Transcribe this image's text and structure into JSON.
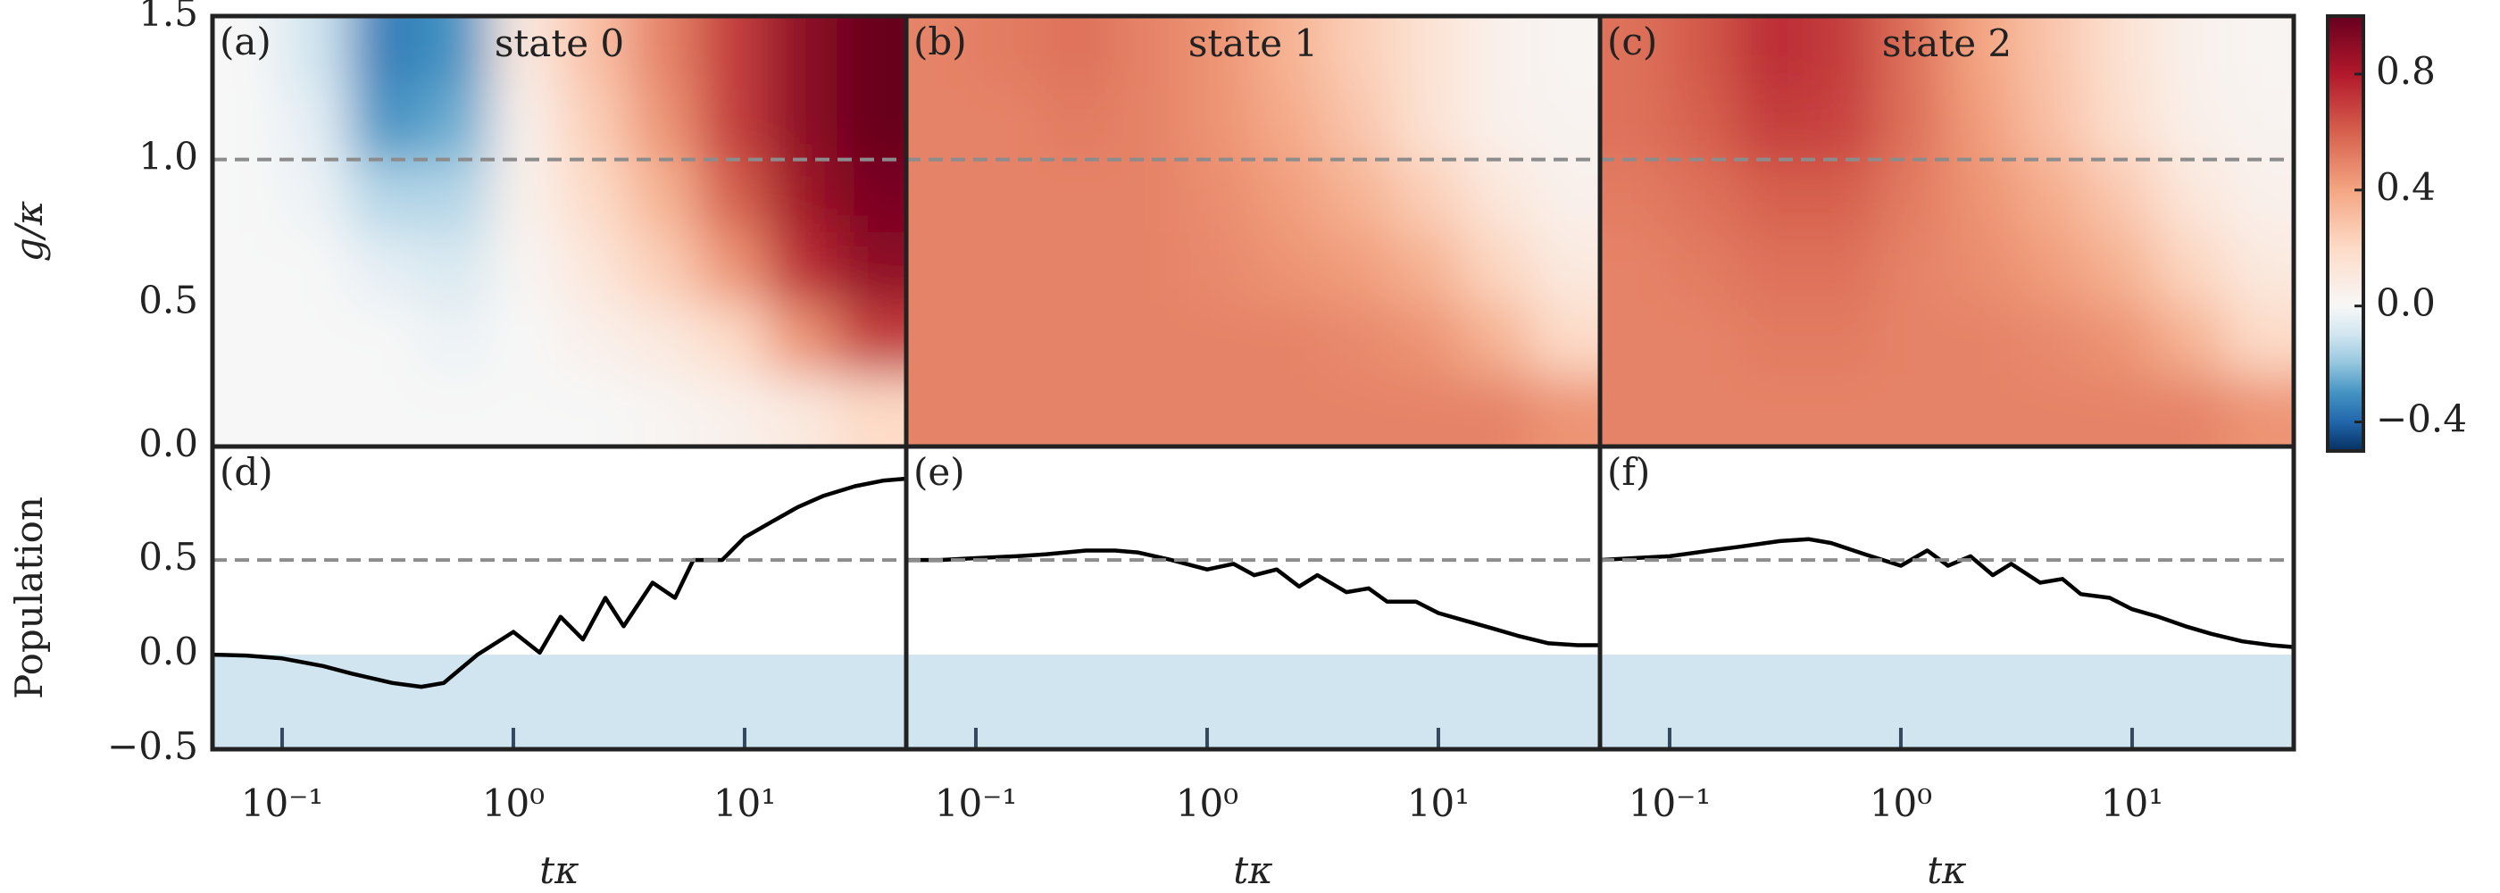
{
  "chart_data": [
    {
      "type": "heatmap",
      "label": "(a)",
      "title": "state 0",
      "ylabel": "g/κ",
      "x": [
        0.07,
        0.14,
        0.28,
        0.56,
        1.12,
        2.24,
        4.47,
        8.91,
        17.8,
        35.5
      ],
      "y": [
        0.125,
        0.375,
        0.625,
        0.875,
        1.125,
        1.375
      ],
      "z": [
        [
          0,
          0,
          0,
          0,
          0,
          0,
          0.02,
          0.05,
          0.1,
          0.2
        ],
        [
          0,
          0,
          0,
          -0.03,
          0,
          0.05,
          0.1,
          0.2,
          0.45,
          0.7
        ],
        [
          0,
          0,
          -0.05,
          -0.08,
          0.02,
          0.12,
          0.25,
          0.45,
          0.75,
          0.9
        ],
        [
          0,
          -0.03,
          -0.15,
          -0.15,
          0.05,
          0.2,
          0.35,
          0.6,
          0.85,
          0.95
        ],
        [
          0,
          -0.05,
          -0.3,
          -0.25,
          0.05,
          0.25,
          0.45,
          0.7,
          0.9,
          1.0
        ],
        [
          0,
          -0.1,
          -0.35,
          -0.3,
          0.1,
          0.3,
          0.5,
          0.7,
          0.9,
          1.0
        ]
      ],
      "xlim": [
        0.05,
        50
      ],
      "xscale": "log",
      "ylim": [
        0,
        1.5
      ],
      "yticks": [
        {
          "value": 0,
          "label": "0.0"
        },
        {
          "value": 0.5,
          "label": "0.5"
        },
        {
          "value": 1,
          "label": "1.0"
        },
        {
          "value": 1.5,
          "label": "1.5"
        }
      ],
      "hline": 1.0,
      "colormap": "RdBu_r",
      "zlim": [
        -0.5,
        1.0
      ],
      "zcenter": 0,
      "colorbar": {
        "ticks": [
          {
            "value": -0.4,
            "label": "−0.4"
          },
          {
            "value": 0,
            "label": "0.0"
          },
          {
            "value": 0.4,
            "label": "0.4"
          },
          {
            "value": 0.8,
            "label": "0.8"
          }
        ]
      }
    },
    {
      "type": "heatmap",
      "label": "(b)",
      "title": "state 1",
      "x": [
        0.07,
        0.14,
        0.28,
        0.56,
        1.12,
        2.24,
        4.47,
        8.91,
        17.8,
        35.5
      ],
      "y": [
        0.125,
        0.375,
        0.625,
        0.875,
        1.125,
        1.375
      ],
      "z": [
        [
          0.5,
          0.5,
          0.5,
          0.5,
          0.5,
          0.5,
          0.5,
          0.5,
          0.5,
          0.45
        ],
        [
          0.5,
          0.5,
          0.5,
          0.5,
          0.5,
          0.5,
          0.48,
          0.45,
          0.35,
          0.2
        ],
        [
          0.5,
          0.5,
          0.5,
          0.5,
          0.48,
          0.45,
          0.42,
          0.35,
          0.22,
          0.1
        ],
        [
          0.5,
          0.5,
          0.5,
          0.5,
          0.47,
          0.42,
          0.35,
          0.25,
          0.12,
          0.05
        ],
        [
          0.5,
          0.5,
          0.52,
          0.5,
          0.45,
          0.38,
          0.28,
          0.15,
          0.05,
          0.03
        ],
        [
          0.5,
          0.52,
          0.55,
          0.5,
          0.45,
          0.35,
          0.25,
          0.15,
          0.05,
          0.02
        ]
      ],
      "xlim": [
        0.05,
        50
      ],
      "xscale": "log",
      "ylim": [
        0,
        1.5
      ],
      "hline": 1.0,
      "colormap": "RdBu_r",
      "zlim": [
        -0.5,
        1.0
      ],
      "zcenter": 0
    },
    {
      "type": "heatmap",
      "label": "(c)",
      "title": "state 2",
      "x": [
        0.07,
        0.14,
        0.28,
        0.56,
        1.12,
        2.24,
        4.47,
        8.91,
        17.8,
        35.5
      ],
      "y": [
        0.125,
        0.375,
        0.625,
        0.875,
        1.125,
        1.375
      ],
      "z": [
        [
          0.5,
          0.5,
          0.5,
          0.5,
          0.5,
          0.5,
          0.5,
          0.5,
          0.5,
          0.45
        ],
        [
          0.5,
          0.5,
          0.52,
          0.52,
          0.5,
          0.5,
          0.48,
          0.45,
          0.35,
          0.2
        ],
        [
          0.5,
          0.52,
          0.55,
          0.55,
          0.5,
          0.47,
          0.42,
          0.35,
          0.22,
          0.1
        ],
        [
          0.52,
          0.55,
          0.6,
          0.6,
          0.52,
          0.45,
          0.37,
          0.27,
          0.12,
          0.05
        ],
        [
          0.55,
          0.6,
          0.7,
          0.68,
          0.55,
          0.42,
          0.3,
          0.17,
          0.06,
          0.03
        ],
        [
          0.55,
          0.62,
          0.75,
          0.7,
          0.55,
          0.4,
          0.28,
          0.16,
          0.05,
          0.02
        ]
      ],
      "xlim": [
        0.05,
        50
      ],
      "xscale": "log",
      "ylim": [
        0,
        1.5
      ],
      "hline": 1.0,
      "colormap": "RdBu_r",
      "zlim": [
        -0.5,
        1.0
      ],
      "zcenter": 0
    },
    {
      "type": "line",
      "label": "(d)",
      "ylabel": "Population",
      "xlabel": "tκ",
      "x": [
        0.05,
        0.07,
        0.1,
        0.15,
        0.2,
        0.3,
        0.4,
        0.5,
        0.7,
        1.0,
        1.3,
        1.6,
        2.0,
        2.5,
        3.0,
        4,
        5,
        6,
        8,
        10,
        13,
        17,
        22,
        30,
        40,
        50
      ],
      "values": [
        0,
        -0.005,
        -0.02,
        -0.06,
        -0.1,
        -0.15,
        -0.17,
        -0.15,
        0,
        0.12,
        0.01,
        0.2,
        0.08,
        0.3,
        0.15,
        0.38,
        0.3,
        0.5,
        0.5,
        0.62,
        0.7,
        0.78,
        0.84,
        0.89,
        0.92,
        0.93
      ],
      "color": "#000000",
      "xlim": [
        0.05,
        50
      ],
      "xscale": "log",
      "ylim": [
        -0.5,
        1.1
      ],
      "xticks": [
        {
          "value": 0.1,
          "label": "10⁻¹"
        },
        {
          "value": 1,
          "label": "10⁰"
        },
        {
          "value": 10,
          "label": "10¹"
        }
      ],
      "yticks": [
        {
          "value": -0.5,
          "label": "−0.5"
        },
        {
          "value": 0,
          "label": "0.0"
        },
        {
          "value": 0.5,
          "label": "0.5"
        }
      ],
      "hline": 0.5,
      "shade": {
        "below": 0,
        "color": "#d1e5f0"
      }
    },
    {
      "type": "line",
      "label": "(e)",
      "xlabel": "tκ",
      "x": [
        0.05,
        0.07,
        0.1,
        0.15,
        0.2,
        0.3,
        0.4,
        0.5,
        0.7,
        1.0,
        1.3,
        1.6,
        2.0,
        2.5,
        3.0,
        4,
        5,
        6,
        8,
        10,
        13,
        17,
        22,
        30,
        40,
        50
      ],
      "values": [
        0.5,
        0.5,
        0.51,
        0.52,
        0.53,
        0.55,
        0.55,
        0.54,
        0.5,
        0.45,
        0.48,
        0.42,
        0.45,
        0.36,
        0.42,
        0.33,
        0.35,
        0.28,
        0.28,
        0.22,
        0.18,
        0.14,
        0.1,
        0.06,
        0.05,
        0.05
      ],
      "color": "#000000",
      "xlim": [
        0.05,
        50
      ],
      "xscale": "log",
      "ylim": [
        -0.5,
        1.1
      ],
      "xticks": [
        {
          "value": 0.1,
          "label": "10⁻¹"
        },
        {
          "value": 1,
          "label": "10⁰"
        },
        {
          "value": 10,
          "label": "10¹"
        }
      ],
      "hline": 0.5,
      "shade": {
        "below": 0,
        "color": "#d1e5f0"
      }
    },
    {
      "type": "line",
      "label": "(f)",
      "xlabel": "tκ",
      "x": [
        0.05,
        0.07,
        0.1,
        0.15,
        0.2,
        0.3,
        0.4,
        0.5,
        0.7,
        1.0,
        1.3,
        1.6,
        2.0,
        2.5,
        3.0,
        4,
        5,
        6,
        8,
        10,
        13,
        17,
        22,
        30,
        40,
        50
      ],
      "values": [
        0.5,
        0.51,
        0.52,
        0.55,
        0.57,
        0.6,
        0.61,
        0.59,
        0.53,
        0.47,
        0.55,
        0.47,
        0.52,
        0.42,
        0.48,
        0.38,
        0.4,
        0.32,
        0.3,
        0.24,
        0.2,
        0.15,
        0.11,
        0.07,
        0.05,
        0.04
      ],
      "color": "#000000",
      "xlim": [
        0.05,
        50
      ],
      "xscale": "log",
      "ylim": [
        -0.5,
        1.1
      ],
      "xticks": [
        {
          "value": 0.1,
          "label": "10⁻¹"
        },
        {
          "value": 1,
          "label": "10⁰"
        },
        {
          "value": 10,
          "label": "10¹"
        }
      ],
      "hline": 0.5,
      "shade": {
        "below": 0,
        "color": "#d1e5f0"
      }
    }
  ]
}
